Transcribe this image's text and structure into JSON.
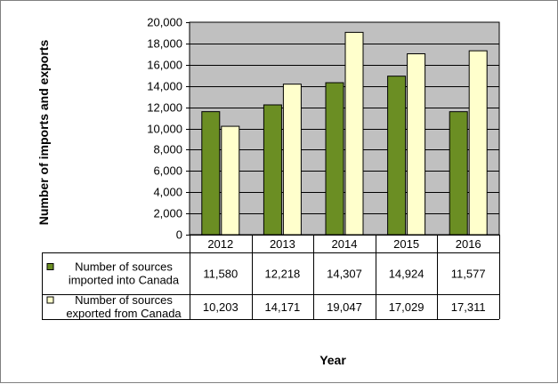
{
  "chart_data": {
    "type": "bar",
    "title": "",
    "xlabel": "Year",
    "ylabel": "Number of imports and exports",
    "categories": [
      "2012",
      "2013",
      "2014",
      "2015",
      "2016"
    ],
    "ylim": [
      0,
      20000
    ],
    "ytick_values": [
      0,
      2000,
      4000,
      6000,
      8000,
      10000,
      12000,
      14000,
      16000,
      18000,
      20000
    ],
    "ytick_labels": [
      "0",
      "2,000",
      "4,000",
      "6,000",
      "8,000",
      "10,000",
      "12,000",
      "14,000",
      "16,000",
      "18,000",
      "20,000"
    ],
    "grid": true,
    "legend": "data table below chart",
    "series": [
      {
        "name": "Number of sources imported into Canada",
        "name_lines": [
          "Number of sources",
          "imported into Canada"
        ],
        "color": "#6b8e23",
        "values": [
          11580,
          12218,
          14307,
          14924,
          11577
        ],
        "labels": [
          "11,580",
          "12,218",
          "14,307",
          "14,924",
          "11,577"
        ]
      },
      {
        "name": "Number of sources exported from Canada",
        "name_lines": [
          "Number of sources",
          "exported from Canada"
        ],
        "color": "#ffffcc",
        "values": [
          10203,
          14171,
          19047,
          17029,
          17311
        ],
        "labels": [
          "10,203",
          "14,171",
          "19,047",
          "17,029",
          "17,311"
        ]
      }
    ]
  },
  "colors": {
    "plot_background": "#c0c0c0",
    "gridline": "#000000",
    "bar_outline": "#000000"
  }
}
